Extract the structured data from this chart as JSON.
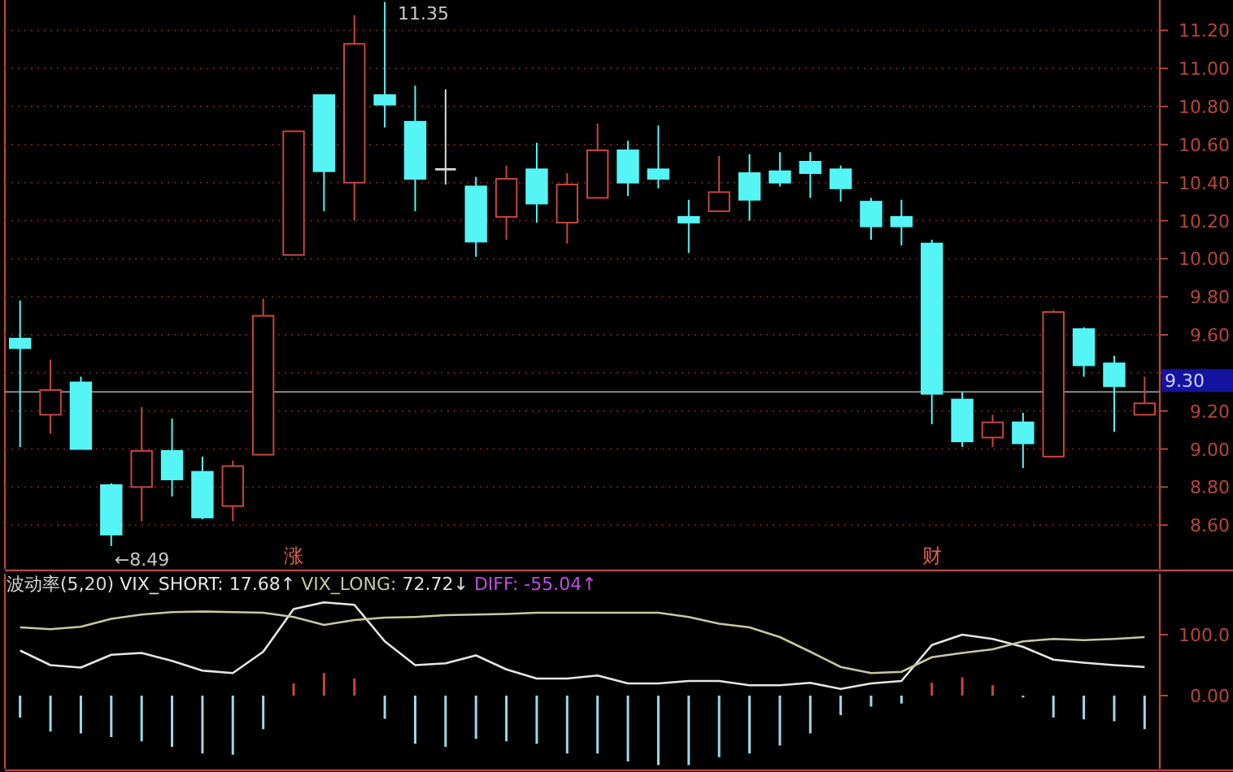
{
  "chart_data": [
    {
      "type": "candlestick",
      "categories": [
        null,
        null,
        null,
        null,
        null,
        null,
        null,
        null,
        null,
        "涨",
        null,
        null,
        null,
        null,
        null,
        null,
        null,
        null,
        null,
        null,
        null,
        null,
        null,
        null,
        null,
        null,
        null,
        null,
        null,
        null,
        "财",
        null,
        null,
        null,
        null,
        null,
        null,
        null
      ],
      "ohlc": [
        [
          9.58,
          9.78,
          9.01,
          9.53
        ],
        [
          9.18,
          9.47,
          9.08,
          9.31
        ],
        [
          9.35,
          9.38,
          9.0,
          9.0
        ],
        [
          8.81,
          8.82,
          8.49,
          8.55
        ],
        [
          8.8,
          9.22,
          8.62,
          8.99
        ],
        [
          8.99,
          9.16,
          8.75,
          8.84
        ],
        [
          8.88,
          8.96,
          8.63,
          8.64
        ],
        [
          8.7,
          8.94,
          8.62,
          8.91
        ],
        [
          8.97,
          9.79,
          8.97,
          9.7
        ],
        [
          10.02,
          10.67,
          10.02,
          10.67
        ],
        [
          10.86,
          10.86,
          10.25,
          10.46
        ],
        [
          10.4,
          11.28,
          10.2,
          11.13
        ],
        [
          10.86,
          11.35,
          10.69,
          10.81
        ],
        [
          10.72,
          10.91,
          10.25,
          10.42
        ],
        [
          10.47,
          10.89,
          10.39,
          10.47
        ],
        [
          10.38,
          10.43,
          10.01,
          10.09
        ],
        [
          10.22,
          10.49,
          10.1,
          10.42
        ],
        [
          10.47,
          10.61,
          10.19,
          10.29
        ],
        [
          10.19,
          10.45,
          10.08,
          10.39
        ],
        [
          10.32,
          10.71,
          10.32,
          10.57
        ],
        [
          10.57,
          10.62,
          10.33,
          10.4
        ],
        [
          10.47,
          10.7,
          10.37,
          10.42
        ],
        [
          10.22,
          10.31,
          10.03,
          10.19
        ],
        [
          10.25,
          10.54,
          10.25,
          10.35
        ],
        [
          10.45,
          10.55,
          10.2,
          10.31
        ],
        [
          10.46,
          10.56,
          10.38,
          10.4
        ],
        [
          10.51,
          10.56,
          10.32,
          10.45
        ],
        [
          10.47,
          10.49,
          10.3,
          10.37
        ],
        [
          10.3,
          10.32,
          10.1,
          10.17
        ],
        [
          10.22,
          10.31,
          10.07,
          10.17
        ],
        [
          10.08,
          10.1,
          9.13,
          9.29
        ],
        [
          9.26,
          9.3,
          9.01,
          9.04
        ],
        [
          9.06,
          9.18,
          9.01,
          9.14
        ],
        [
          9.14,
          9.19,
          8.9,
          9.03
        ],
        [
          8.96,
          9.73,
          8.96,
          9.72
        ],
        [
          9.63,
          9.64,
          9.38,
          9.44
        ],
        [
          9.45,
          9.49,
          9.09,
          9.33
        ],
        [
          9.18,
          9.38,
          9.18,
          9.24
        ]
      ],
      "colors": [
        "#55f5f5",
        "#c8463c",
        "#55f5f5",
        "#55f5f5",
        "#c8463c",
        "#55f5f5",
        "#55f5f5",
        "#c8463c",
        "#c8463c",
        "#c8463c",
        "#55f5f5",
        "#c8463c",
        "#55f5f5",
        "#55f5f5",
        "#d8d8d8",
        "#55f5f5",
        "#c8463c",
        "#55f5f5",
        "#c8463c",
        "#c8463c",
        "#55f5f5",
        "#55f5f5",
        "#55f5f5",
        "#c8463c",
        "#55f5f5",
        "#55f5f5",
        "#55f5f5",
        "#55f5f5",
        "#55f5f5",
        "#55f5f5",
        "#55f5f5",
        "#55f5f5",
        "#c8463c",
        "#55f5f5",
        "#c8463c",
        "#55f5f5",
        "#55f5f5",
        "#c8463c"
      ],
      "ylim": [
        8.37,
        11.36
      ],
      "yticks": [
        {
          "value": 8.6,
          "label": "8.60"
        },
        {
          "value": 8.8,
          "label": "8.80"
        },
        {
          "value": 9.0,
          "label": "9.00"
        },
        {
          "value": 9.2,
          "label": "9.20"
        },
        {
          "value": 9.4,
          "label": null
        },
        {
          "value": 9.6,
          "label": "9.60"
        },
        {
          "value": 9.8,
          "label": "9.80"
        },
        {
          "value": 10.0,
          "label": "10.00"
        },
        {
          "value": 10.2,
          "label": "10.20"
        },
        {
          "value": 10.4,
          "label": "10.40"
        },
        {
          "value": 10.6,
          "label": "10.60"
        },
        {
          "value": 10.8,
          "label": "10.80"
        },
        {
          "value": 11.0,
          "label": "11.00"
        },
        {
          "value": 11.2,
          "label": "11.20"
        }
      ],
      "tick_labels": "y",
      "grid": "y",
      "ref_lines": [
        {
          "axis": "y",
          "value": 9.3,
          "label": "9.30",
          "color": "#8c8c8c"
        }
      ],
      "annotations": [
        "11.35",
        "←8.49"
      ]
    },
    {
      "type": "line",
      "title": "波动率(5,20)",
      "categories": [
        null,
        null,
        null,
        null,
        null,
        null,
        null,
        null,
        null,
        null,
        null,
        null,
        null,
        null,
        null,
        null,
        null,
        null,
        null,
        null,
        null,
        null,
        null,
        null,
        null,
        null,
        null,
        null,
        null,
        null,
        null,
        null,
        null,
        null,
        null,
        null,
        null,
        null
      ],
      "series": [
        {
          "name": "VIX_SHORT:",
          "color": "#e6e6e6",
          "values": [
            74,
            50,
            46,
            67,
            70,
            57,
            41,
            37,
            72,
            142,
            153,
            149,
            89,
            50,
            53,
            66,
            43,
            28,
            28,
            33,
            20,
            20,
            24,
            24,
            17,
            17,
            21,
            11,
            20,
            24,
            83,
            100,
            93,
            80,
            59,
            54,
            50,
            47
          ]
        },
        {
          "name": "VIX_LONG:",
          "color": "#c8c8a0",
          "values": [
            112,
            109,
            113,
            126,
            133,
            137,
            138,
            137,
            136,
            129,
            116,
            124,
            128,
            129,
            132,
            133,
            134,
            136,
            136,
            136,
            136,
            136,
            129,
            118,
            112,
            96,
            72,
            47,
            37,
            39,
            63,
            70,
            76,
            89,
            93,
            91,
            93,
            96
          ]
        },
        {
          "type": "bar",
          "color": "#c050e0",
          "values": [
            -36,
            -59,
            -62,
            -68,
            -75,
            -84,
            -95,
            -97,
            -55,
            20,
            37,
            28,
            -38,
            -79,
            -84,
            -71,
            -75,
            -79,
            -95,
            -95,
            -108,
            -114,
            -114,
            -101,
            -95,
            -82,
            -62,
            -32,
            -18,
            -13,
            21,
            30,
            17,
            -3,
            -36,
            -39,
            -42,
            -55
          ],
          "colors": [
            "#9ed8e8",
            "#9ed8e8",
            "#9ed8e8",
            "#9ed8e8",
            "#9ed8e8",
            "#9ed8e8",
            "#9ed8e8",
            "#9ed8e8",
            "#9ed8e8",
            "#c8463c",
            "#c8463c",
            "#c8463c",
            "#9ed8e8",
            "#9ed8e8",
            "#9ed8e8",
            "#9ed8e8",
            "#9ed8e8",
            "#9ed8e8",
            "#9ed8e8",
            "#9ed8e8",
            "#9ed8e8",
            "#9ed8e8",
            "#9ed8e8",
            "#9ed8e8",
            "#9ed8e8",
            "#9ed8e8",
            "#9ed8e8",
            "#9ed8e8",
            "#9ed8e8",
            "#9ed8e8",
            "#c8463c",
            "#c8463c",
            "#c8463c",
            "#9ed8e8",
            "#9ed8e8",
            "#9ed8e8",
            "#9ed8e8",
            "#9ed8e8"
          ]
        }
      ],
      "annotations": [
        "17.68↑",
        "72.72↓",
        "DIFF: -55.04↑"
      ],
      "ylim": [
        -120,
        200
      ],
      "yticks": [
        {
          "value": 100,
          "label": "100.0"
        },
        {
          "value": 0,
          "label": "0.00"
        }
      ],
      "tick_labels": "y"
    }
  ]
}
